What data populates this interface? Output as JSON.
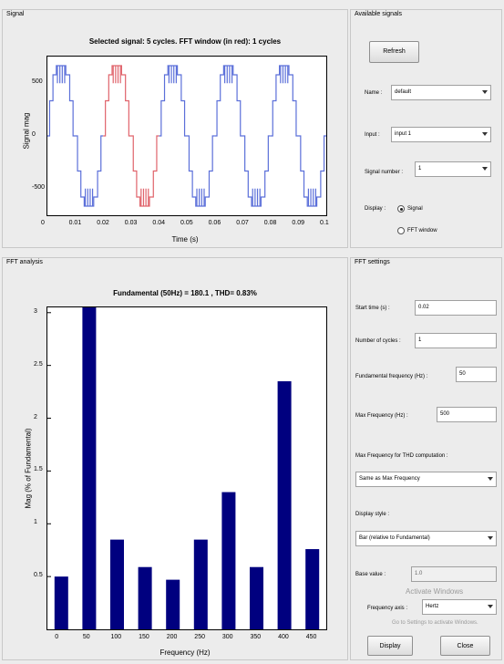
{
  "signal_panel": {
    "title": "Signal",
    "plot_title": "Selected signal: 5 cycles. FFT window (in red): 1 cycles",
    "xlabel": "Time (s)",
    "ylabel": "Signal mag",
    "xticks": [
      "0",
      "0.01",
      "0.02",
      "0.03",
      "0.04",
      "0.05",
      "0.06",
      "0.07",
      "0.08",
      "0.09",
      "0.1"
    ],
    "yticks": [
      "500",
      "0",
      "-500"
    ],
    "colors": {
      "signal": "#5b6fd9",
      "fft_window": "#e0636b"
    }
  },
  "available_signals": {
    "title": "Available signals",
    "refresh_label": "Refresh",
    "name_label": "Name :",
    "name_value": "default",
    "input_label": "Input :",
    "input_value": "input 1",
    "signal_number_label": "Signal number :",
    "signal_number_value": "1",
    "display_label": "Display :",
    "display_options": [
      "Signal",
      "FFT window"
    ],
    "display_selected": "Signal"
  },
  "fft_analysis": {
    "title": "FFT analysis",
    "plot_title": "Fundamental (50Hz) = 180.1 , THD= 0.83%",
    "xlabel": "Frequency (Hz)",
    "ylabel": "Mag (% of Fundamental)"
  },
  "fft_settings": {
    "title": "FFT settings",
    "start_time_label": "Start time (s) :",
    "start_time_value": "0.02",
    "cycles_label": "Number of cycles :",
    "cycles_value": "1",
    "fund_freq_label": "Fundamental frequency (Hz) :",
    "fund_freq_value": "50",
    "max_freq_label": "Max Frequency (Hz) :",
    "max_freq_value": "500",
    "max_freq_thd_label": "Max Frequency for THD computation :",
    "max_freq_thd_value": "Same as Max Frequency",
    "display_style_label": "Display style :",
    "display_style_value": "Bar (relative to Fundamental)",
    "base_value_label": "Base value :",
    "base_value_value": "1.0",
    "freq_axis_label": "Frequency axis :",
    "freq_axis_value": "Hertz",
    "display_button": "Display",
    "close_button": "Close",
    "watermark_line1": "Activate Windows",
    "watermark_line2": "Go to Settings to activate Windows."
  },
  "chart_data": {
    "type": "bar",
    "title": "Fundamental (50Hz) = 180.1 , THD= 0.83%",
    "xlabel": "Frequency (Hz)",
    "ylabel": "Mag (% of Fundamental)",
    "categories": [
      "0",
      "50",
      "100",
      "150",
      "200",
      "250",
      "300",
      "350",
      "400",
      "450"
    ],
    "values": [
      0.5,
      3.05,
      0.85,
      0.59,
      0.47,
      0.85,
      1.3,
      0.59,
      2.35,
      0.76
    ],
    "yticks": [
      "0.5",
      "1",
      "1.5",
      "2",
      "2.5",
      "3"
    ],
    "ylim": [
      0,
      3.05
    ],
    "bar_color": "#00007f",
    "grid": false
  }
}
